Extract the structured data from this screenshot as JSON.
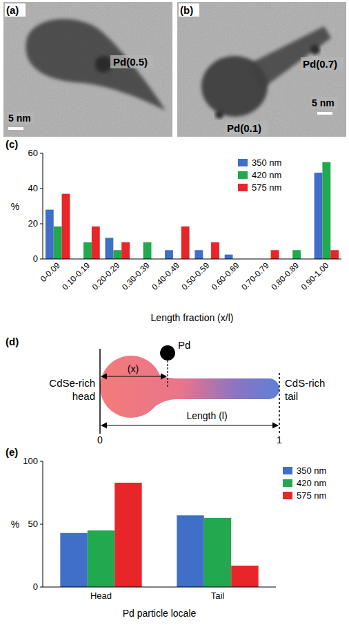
{
  "chart_data": [
    {
      "type": "bar",
      "title": "(c)",
      "x_label": "Length fraction (x/l)",
      "y_label": "%",
      "categories": [
        "0-0.09",
        "0.10-0.19",
        "0.20-0.29",
        "0.30-0.39",
        "0.40-0.49",
        "0.50-0.59",
        "0.60-0.69",
        "0.70-0.79",
        "0.80-0.89",
        "0.90-1.00"
      ],
      "series": [
        {
          "name": "350 nm",
          "color": "#3f6fc6",
          "values": [
            28,
            0,
            12,
            0,
            5,
            5,
            2.5,
            0,
            0,
            49
          ]
        },
        {
          "name": "420 nm",
          "color": "#22a84e",
          "values": [
            18.5,
            9.5,
            5,
            9.5,
            0,
            0,
            0,
            0,
            5,
            55
          ]
        },
        {
          "name": "575 nm",
          "color": "#e8262a",
          "values": [
            37,
            18.5,
            9.5,
            0,
            18.5,
            9.5,
            0,
            5,
            0,
            5
          ]
        }
      ],
      "ylim": [
        0,
        60
      ],
      "yticks": [
        0,
        20,
        40,
        60
      ],
      "grid": false,
      "legend": "upper right"
    },
    {
      "type": "bar",
      "title": "(e)",
      "x_label": "Pd particle locale",
      "y_label": "%",
      "categories": [
        "Head",
        "Tail"
      ],
      "series": [
        {
          "name": "350 nm",
          "color": "#3f6fc6",
          "values": [
            43,
            57
          ]
        },
        {
          "name": "420 nm",
          "color": "#22a84e",
          "values": [
            45,
            55
          ]
        },
        {
          "name": "575 nm",
          "color": "#e8262a",
          "values": [
            83,
            17
          ]
        }
      ],
      "ylim": [
        0,
        100
      ],
      "yticks": [
        0,
        50,
        100
      ],
      "grid": false,
      "legend": "right"
    }
  ],
  "images": [
    {
      "letter": "(a)",
      "labels": [
        "Pd(0.5)"
      ],
      "scale": "5 nm"
    },
    {
      "letter": "(b)",
      "labels": [
        "Pd(0.7)",
        "Pd(0.1)"
      ],
      "scale": "5 nm"
    }
  ],
  "diagram": {
    "letter": "(d)",
    "particle": "Pd",
    "head": "CdSe-rich head",
    "tail": "CdS-rich tail",
    "x_label": "(x)",
    "length_label": "Length (l)",
    "start": "0",
    "end": "1"
  }
}
